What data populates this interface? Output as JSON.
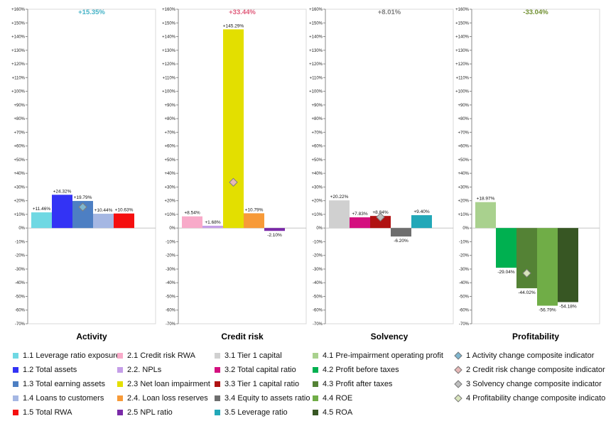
{
  "chart_data": {
    "type": "bar",
    "ylim": [
      -70,
      160
    ],
    "ytick_step": 10,
    "panels": [
      {
        "title": "Activity",
        "composite": {
          "label": "+15.35%",
          "value": 15.35,
          "color": "#45b3c7",
          "marker_fill": "#7fb7d0",
          "marker_after_bar": 2
        },
        "series": [
          {
            "name": "1.1 Leverage ratio exposure",
            "value": 11.46,
            "label": "+11.46%",
            "color": "#6fd8e3"
          },
          {
            "name": "1.2 Total assets",
            "value": 24.32,
            "label": "+24.32%",
            "color": "#3333f5"
          },
          {
            "name": "1.3 Total earning assets",
            "value": 19.79,
            "label": "+19.79%",
            "color": "#4d7fc3"
          },
          {
            "name": "1.4 Loans to customers",
            "value": 10.44,
            "label": "+10.44%",
            "color": "#a5b7e3"
          },
          {
            "name": "1.5 Total RWA",
            "value": 10.63,
            "label": "+10.63%",
            "color": "#f50f0f"
          }
        ]
      },
      {
        "title": "Credit risk",
        "composite": {
          "label": "+33.44%",
          "value": 33.44,
          "color": "#e05a7a",
          "marker_fill": "#e6b8b7",
          "marker_after_bar": 2
        },
        "series": [
          {
            "name": "2.1 Credit risk RWA",
            "value": 8.54,
            "label": "+8.54%",
            "color": "#f8aac9"
          },
          {
            "name": "2.2. NPLs",
            "value": 1.68,
            "label": "+1.68%",
            "color": "#c59ee8"
          },
          {
            "name": "2.3 Net loan impairment",
            "value": 145.29,
            "label": "+145.29%",
            "color": "#e3df00"
          },
          {
            "name": "2.4. Loan loss reserves",
            "value": 10.79,
            "label": "+10.79%",
            "color": "#f79a38"
          },
          {
            "name": "2.5 NPL ratio",
            "value": -2.1,
            "label": "-2.10%",
            "color": "#7a2aa8"
          }
        ]
      },
      {
        "title": "Solvency",
        "composite": {
          "label": "+8.01%",
          "value": 8.01,
          "color": "#7f7f7f",
          "marker_fill": "#bfbfbf",
          "marker_after_bar": 2
        },
        "series": [
          {
            "name": "3.1 Tier 1 capital",
            "value": 20.22,
            "label": "+20.22%",
            "color": "#d0d0d0"
          },
          {
            "name": "3.2 Total capital ratio",
            "value": 7.83,
            "label": "+7.83%",
            "color": "#d4107f"
          },
          {
            "name": "3.3 Tier 1 capital ratio",
            "value": 8.84,
            "label": "+8.84%",
            "color": "#b01212"
          },
          {
            "name": "3.4 Equity to assets ratio",
            "value": -6.2,
            "label": "-6.20%",
            "color": "#6e6e6e"
          },
          {
            "name": "3.5 Leverage ratio",
            "value": 9.4,
            "label": "+9.40%",
            "color": "#22a8b8"
          }
        ]
      },
      {
        "title": "Profitability",
        "composite": {
          "label": "-33.04%",
          "value": -33.04,
          "color": "#6f8f2f",
          "marker_fill": "#d8e4bc",
          "marker_after_bar": 2
        },
        "series": [
          {
            "name": "4.1 Pre-impairment operating profit",
            "value": 18.97,
            "label": "+18.97%",
            "color": "#a9d18e"
          },
          {
            "name": "4.2 Profit before taxes",
            "value": -29.04,
            "label": "-29.04%",
            "color": "#00b050"
          },
          {
            "name": "4.3 Profit after taxes",
            "value": -44.02,
            "label": "-44.02%",
            "color": "#548235"
          },
          {
            "name": "4.4 ROE",
            "value": -56.79,
            "label": "-56.79%",
            "color": "#70ad47"
          },
          {
            "name": "4.5 ROA",
            "value": -54.18,
            "label": "-54.18%",
            "color": "#375623"
          }
        ]
      }
    ],
    "legend": {
      "composites": [
        {
          "name": "1 Activity change composite indicator",
          "color": "#7fb7d0"
        },
        {
          "name": "2 Credit risk change composite indicator",
          "color": "#e6b8b7"
        },
        {
          "name": "3 Solvency change composite indicator",
          "color": "#bfbfbf"
        },
        {
          "name": "4 Profitability change composite indicator",
          "color": "#d8e4bc"
        }
      ]
    }
  }
}
